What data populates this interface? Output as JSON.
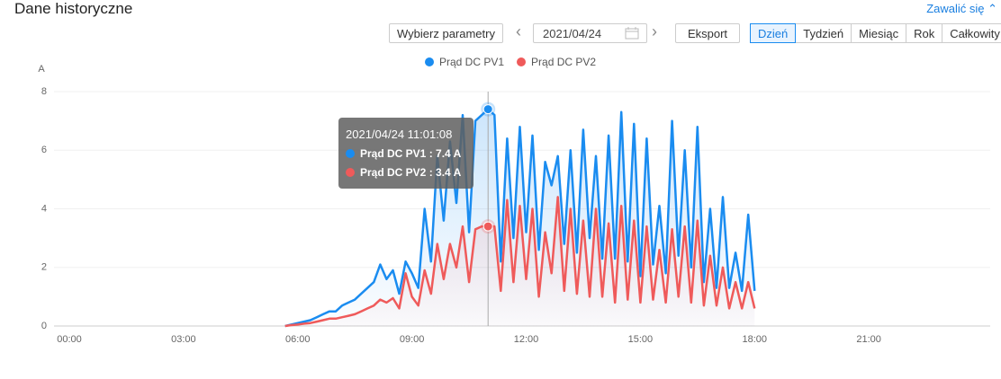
{
  "header": {
    "title": "Dane historyczne",
    "collapse": "Zawalić się"
  },
  "toolbar": {
    "params": "Wybierz parametry",
    "date": "2021/04/24",
    "export": "Eksport",
    "tabs": [
      "Dzień",
      "Tydzień",
      "Miesiąc",
      "Rok",
      "Całkowity"
    ]
  },
  "chart_data": {
    "type": "line",
    "y_label": "A",
    "x": [
      "05:40",
      "05:50",
      "06:00",
      "06:10",
      "06:20",
      "06:30",
      "06:40",
      "06:50",
      "07:00",
      "07:10",
      "07:20",
      "07:30",
      "07:40",
      "07:50",
      "08:00",
      "08:10",
      "08:20",
      "08:30",
      "08:40",
      "08:50",
      "09:00",
      "09:10",
      "09:20",
      "09:30",
      "09:40",
      "09:50",
      "10:00",
      "10:10",
      "10:20",
      "10:30",
      "10:40",
      "10:50",
      "11:00",
      "11:10",
      "11:20",
      "11:30",
      "11:40",
      "11:50",
      "12:00",
      "12:10",
      "12:20",
      "12:30",
      "12:40",
      "12:50",
      "13:00",
      "13:10",
      "13:20",
      "13:30",
      "13:40",
      "13:50",
      "14:00",
      "14:10",
      "14:20",
      "14:30",
      "14:40",
      "14:50",
      "15:00",
      "15:10",
      "15:20",
      "15:30",
      "15:40",
      "15:50",
      "16:00",
      "16:10",
      "16:20",
      "16:30",
      "16:40",
      "16:50",
      "17:00",
      "17:10",
      "17:20",
      "17:30",
      "17:40",
      "17:50",
      "18:00"
    ],
    "series": [
      {
        "name": "Prąd DC PV1",
        "color": "#1a8cf0",
        "values": [
          0,
          0.05,
          0.1,
          0.15,
          0.2,
          0.3,
          0.4,
          0.5,
          0.5,
          0.7,
          0.8,
          0.9,
          1.1,
          1.3,
          1.5,
          2.1,
          1.6,
          1.9,
          1.1,
          2.2,
          1.8,
          1.3,
          4.0,
          2.2,
          5.8,
          3.6,
          6.3,
          4.2,
          7.2,
          3.2,
          7.0,
          7.2,
          7.4,
          7.2,
          2.2,
          6.4,
          3.0,
          6.8,
          3.2,
          6.5,
          2.6,
          5.6,
          4.8,
          5.8,
          2.8,
          6.0,
          2.5,
          6.7,
          3.0,
          5.8,
          2.3,
          6.5,
          2.3,
          7.3,
          2.2,
          6.9,
          1.7,
          6.4,
          2.1,
          4.1,
          1.8,
          7.0,
          2.4,
          6.0,
          2.0,
          6.8,
          1.5,
          4.0,
          1.3,
          4.4,
          1.3,
          2.5,
          1.2,
          3.8,
          1.2
        ]
      },
      {
        "name": "Prąd DC PV2",
        "color": "#ef5a5a",
        "values": [
          0,
          0.03,
          0.05,
          0.08,
          0.1,
          0.15,
          0.2,
          0.25,
          0.25,
          0.3,
          0.35,
          0.4,
          0.5,
          0.6,
          0.7,
          0.9,
          0.8,
          0.95,
          0.6,
          1.8,
          1.0,
          0.7,
          1.9,
          1.1,
          2.8,
          1.6,
          2.8,
          2.0,
          3.4,
          1.5,
          3.3,
          3.4,
          3.4,
          3.4,
          1.2,
          4.3,
          1.5,
          4.1,
          1.6,
          4.0,
          1.0,
          3.2,
          1.8,
          4.4,
          1.2,
          4.0,
          1.1,
          3.6,
          1.0,
          4.0,
          1.0,
          3.5,
          0.8,
          4.1,
          0.9,
          3.6,
          0.8,
          3.4,
          0.9,
          2.6,
          0.8,
          3.3,
          1.0,
          3.4,
          0.8,
          3.6,
          0.7,
          2.4,
          0.7,
          2.0,
          0.6,
          1.5,
          0.6,
          1.5,
          0.6
        ]
      }
    ],
    "xlim": [
      "00:00",
      "24:00"
    ],
    "xticks": [
      "00:00",
      "03:00",
      "06:00",
      "09:00",
      "12:00",
      "15:00",
      "18:00",
      "21:00"
    ],
    "ylim": [
      0,
      8
    ],
    "yticks": [
      0,
      2,
      4,
      6,
      8
    ],
    "grid": true,
    "legend": "top",
    "tooltip": {
      "title": "2021/04/24 11:01:08",
      "items": [
        "Prąd DC PV1 : 7.4 A",
        "Prąd DC PV2 : 3.4 A"
      ]
    }
  }
}
